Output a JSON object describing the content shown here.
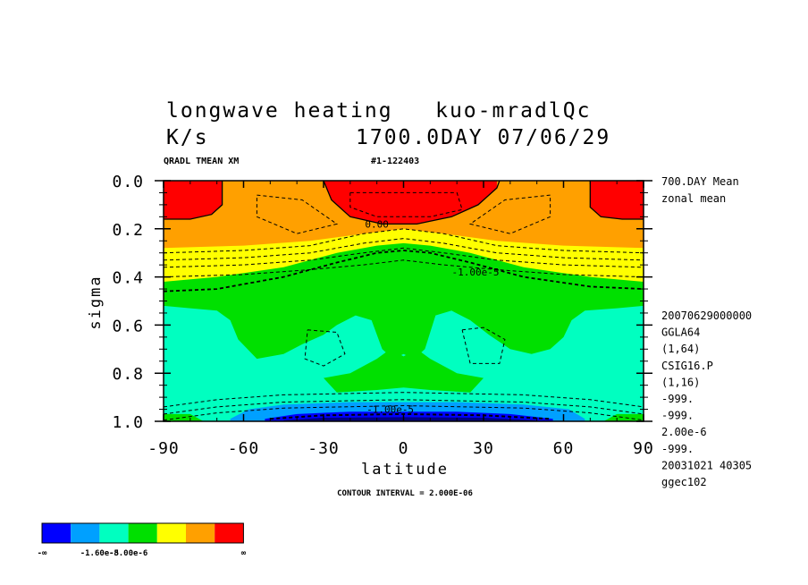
{
  "chart_data": {
    "type": "heatmap",
    "title": "longwave heating   kuo-mradlQc",
    "subtitle_left": "K/s",
    "subtitle_right": "1700.0DAY 07/06/29",
    "variable_line": "QRADL TMEAN XM",
    "run_id": "#1-122403",
    "xlabel": "latitude",
    "ylabel": "sigma",
    "xlim": [
      -90,
      90
    ],
    "ylim": [
      1.0,
      0.0
    ],
    "x_ticks": [
      "-90",
      "-60",
      "-30",
      "0",
      "30",
      "60",
      "90"
    ],
    "x_tick_values": [
      -90,
      -60,
      -30,
      0,
      30,
      60,
      90
    ],
    "y_ticks": [
      "0.0",
      "0.2",
      "0.4",
      "0.6",
      "0.8",
      "1.0"
    ],
    "y_tick_values": [
      0.0,
      0.2,
      0.4,
      0.6,
      0.8,
      1.0
    ],
    "contour_interval": "CONTOUR INTERVAL = 2.000E-06",
    "contour_labels": [
      {
        "text": "0.00",
        "lat": -10,
        "sigma": 0.18
      },
      {
        "text": "-1.00e-5",
        "lat": 27,
        "sigma": 0.38
      },
      {
        "text": "-1.00e-5",
        "lat": -5,
        "sigma": 0.95
      }
    ],
    "right_annotations": [
      "700.DAY Mean",
      "zonal mean"
    ],
    "right_info": [
      "20070629000000",
      "GGLA64",
      "(1,64)",
      "CSIG16.P",
      "(1,16)",
      "-999.",
      "-999.",
      "2.00e-6",
      "-999.",
      "20031021  40305",
      "ggec102"
    ],
    "colorbar": {
      "colors": [
        "#0000ff",
        "#00a0ff",
        "#00ffc0",
        "#00e000",
        "#ffff00",
        "#ffa000",
        "#ff0000"
      ],
      "labels": [
        "-∞",
        "-1.60e-5",
        "-8.00e-6",
        "∞"
      ]
    },
    "colors": {
      "blue": "#0000ff",
      "sky": "#00a0ff",
      "aqua": "#00ffc0",
      "green": "#00e000",
      "yellow": "#ffff00",
      "orange": "#ffa000",
      "red": "#ff0000",
      "navy": "#000080"
    },
    "regions_by_level": {
      "orange": "sigma 0.0-0.25 everywhere (upper troposphere)",
      "red": "sigma 0.0-0.15 at lat -90..-70, -20..30, 70..90",
      "green": "sigma 0.4-0.55 all latitudes; extends to 0.8 near equator",
      "aqua": "sigma 0.55-0.95",
      "sky_blue": "sigma 0.93-1.0 lat -60..65",
      "blue": "sigma 0.97-1.0 lat -50..55"
    }
  }
}
